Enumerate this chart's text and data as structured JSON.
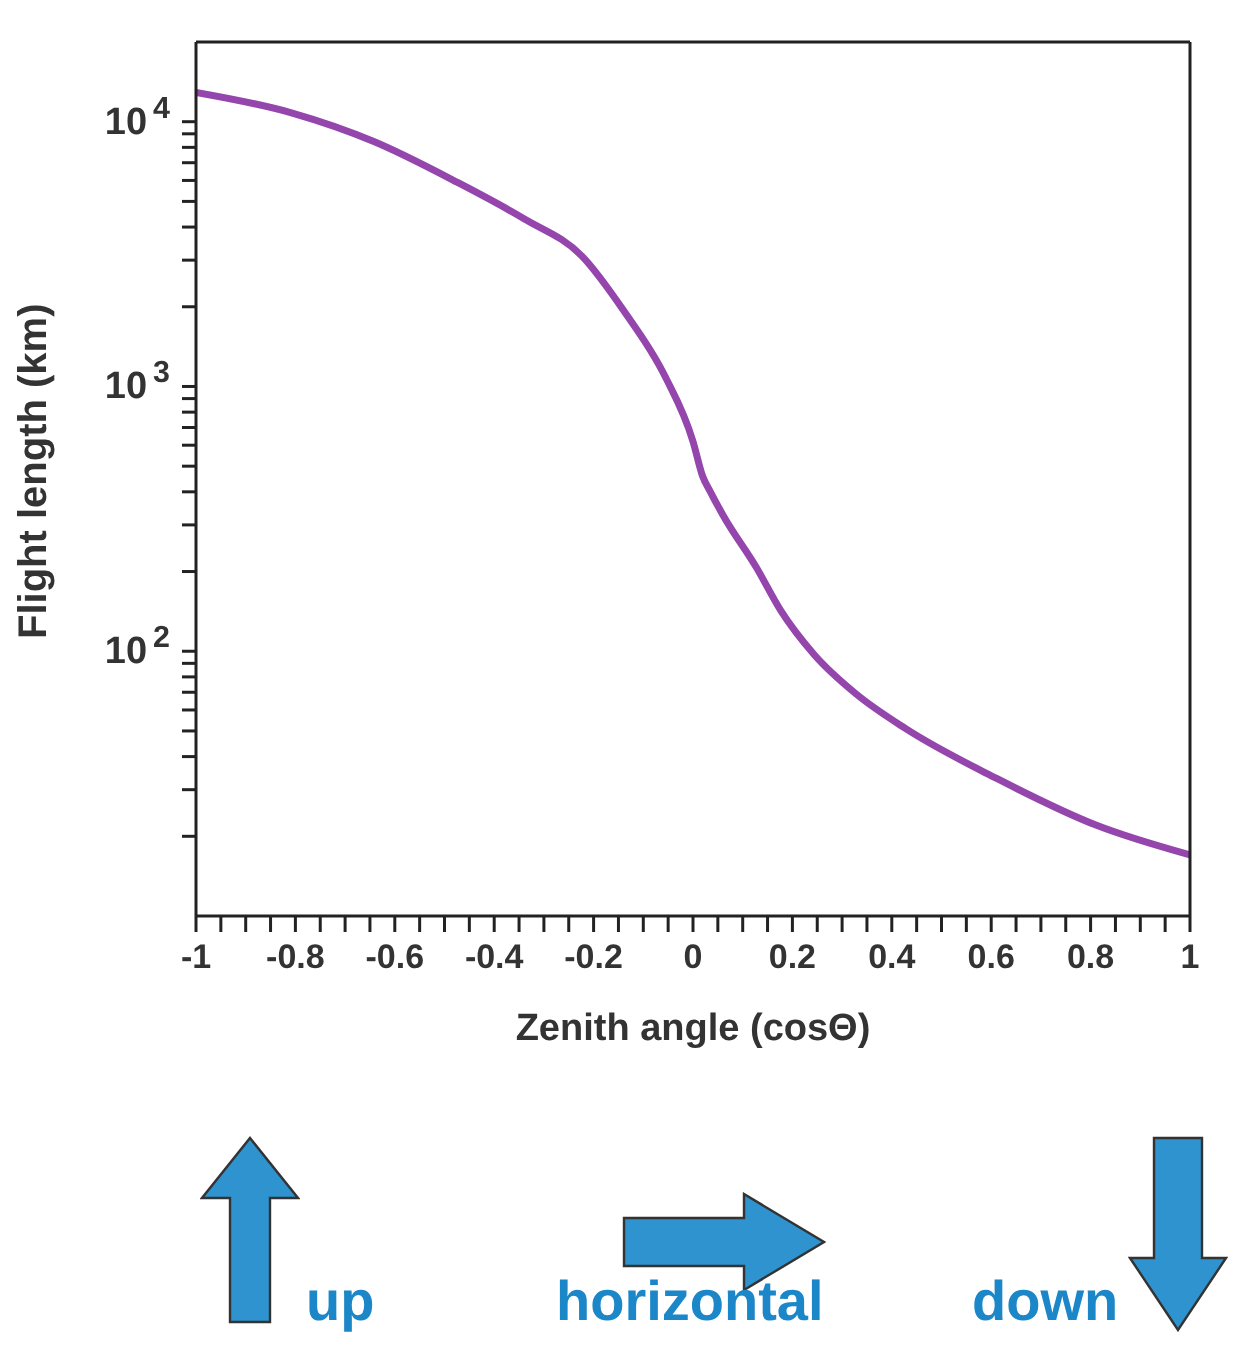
{
  "chart_data": {
    "type": "line",
    "xlabel": "Zenith angle (cosΘ)",
    "ylabel": "Flight length (km)",
    "log": "y",
    "grid": false,
    "legend": false,
    "marker": "none",
    "line_style": "solid",
    "x": [
      -1,
      -0.808,
      -0.641,
      -0.474,
      -0.34,
      -0.223,
      -0.14,
      -0.056,
      0,
      0.019,
      0.035,
      0.061,
      0.127,
      0.177,
      0.244,
      0.328,
      0.428,
      0.612,
      0.812,
      1
    ],
    "series": [
      {
        "color": "#9446ad",
        "values": [
          12900,
          10800,
          8400,
          5900,
          4300,
          3100,
          1940,
          1090,
          620,
          460,
          400,
          325,
          208,
          142,
          97,
          69,
          51,
          33,
          22,
          17
        ]
      }
    ],
    "xlim": [
      -1,
      1
    ],
    "xticks": [
      -1,
      {
        "value": -0.95,
        "label": null
      },
      {
        "value": -0.9,
        "label": null
      },
      {
        "value": -0.85,
        "label": null
      },
      -0.8,
      {
        "value": -0.75,
        "label": null
      },
      {
        "value": -0.7,
        "label": null
      },
      {
        "value": -0.65,
        "label": null
      },
      -0.6,
      {
        "value": -0.55,
        "label": null
      },
      {
        "value": -0.5,
        "label": null
      },
      {
        "value": -0.45,
        "label": null
      },
      -0.4,
      {
        "value": -0.35,
        "label": null
      },
      {
        "value": -0.3,
        "label": null
      },
      {
        "value": -0.25,
        "label": null
      },
      -0.2,
      {
        "value": -0.15,
        "label": null
      },
      {
        "value": -0.1,
        "label": null
      },
      {
        "value": -0.05,
        "label": null
      },
      0,
      {
        "value": 0.05,
        "label": null
      },
      {
        "value": 0.1,
        "label": null
      },
      {
        "value": 0.15,
        "label": null
      },
      0.2,
      {
        "value": 0.25,
        "label": null
      },
      {
        "value": 0.3,
        "label": null
      },
      {
        "value": 0.35,
        "label": null
      },
      0.4,
      {
        "value": 0.45,
        "label": null
      },
      {
        "value": 0.5,
        "label": null
      },
      {
        "value": 0.55,
        "label": null
      },
      0.6,
      {
        "value": 0.65,
        "label": null
      },
      {
        "value": 0.7,
        "label": null
      },
      {
        "value": 0.75,
        "label": null
      },
      0.8,
      {
        "value": 0.85,
        "label": null
      },
      {
        "value": 0.9,
        "label": null
      },
      {
        "value": 0.95,
        "label": null
      },
      1
    ],
    "ylim": [
      10,
      20000
    ],
    "yticks": [
      {
        "value": 20,
        "label": null
      },
      {
        "value": 30,
        "label": null
      },
      {
        "value": 40,
        "label": null
      },
      {
        "value": 50,
        "label": null
      },
      {
        "value": 60,
        "label": null
      },
      {
        "value": 70,
        "label": null
      },
      {
        "value": 80,
        "label": null
      },
      {
        "value": 90,
        "label": null
      },
      {
        "value": 100,
        "label": "10$^{2}$"
      },
      {
        "value": 200,
        "label": null
      },
      {
        "value": 300,
        "label": null
      },
      {
        "value": 400,
        "label": null
      },
      {
        "value": 500,
        "label": null
      },
      {
        "value": 600,
        "label": null
      },
      {
        "value": 700,
        "label": null
      },
      {
        "value": 800,
        "label": null
      },
      {
        "value": 900,
        "label": null
      },
      {
        "value": 1000,
        "label": "10$^{3}$"
      },
      {
        "value": 2000,
        "label": null
      },
      {
        "value": 3000,
        "label": null
      },
      {
        "value": 4000,
        "label": null
      },
      {
        "value": 5000,
        "label": null
      },
      {
        "value": 6000,
        "label": null
      },
      {
        "value": 7000,
        "label": null
      },
      {
        "value": 8000,
        "label": null
      },
      {
        "value": 9000,
        "label": null
      },
      {
        "value": 10000,
        "label": "10$^{4}$"
      }
    ],
    "annotations": [
      "up",
      "horizontal",
      "down"
    ]
  }
}
